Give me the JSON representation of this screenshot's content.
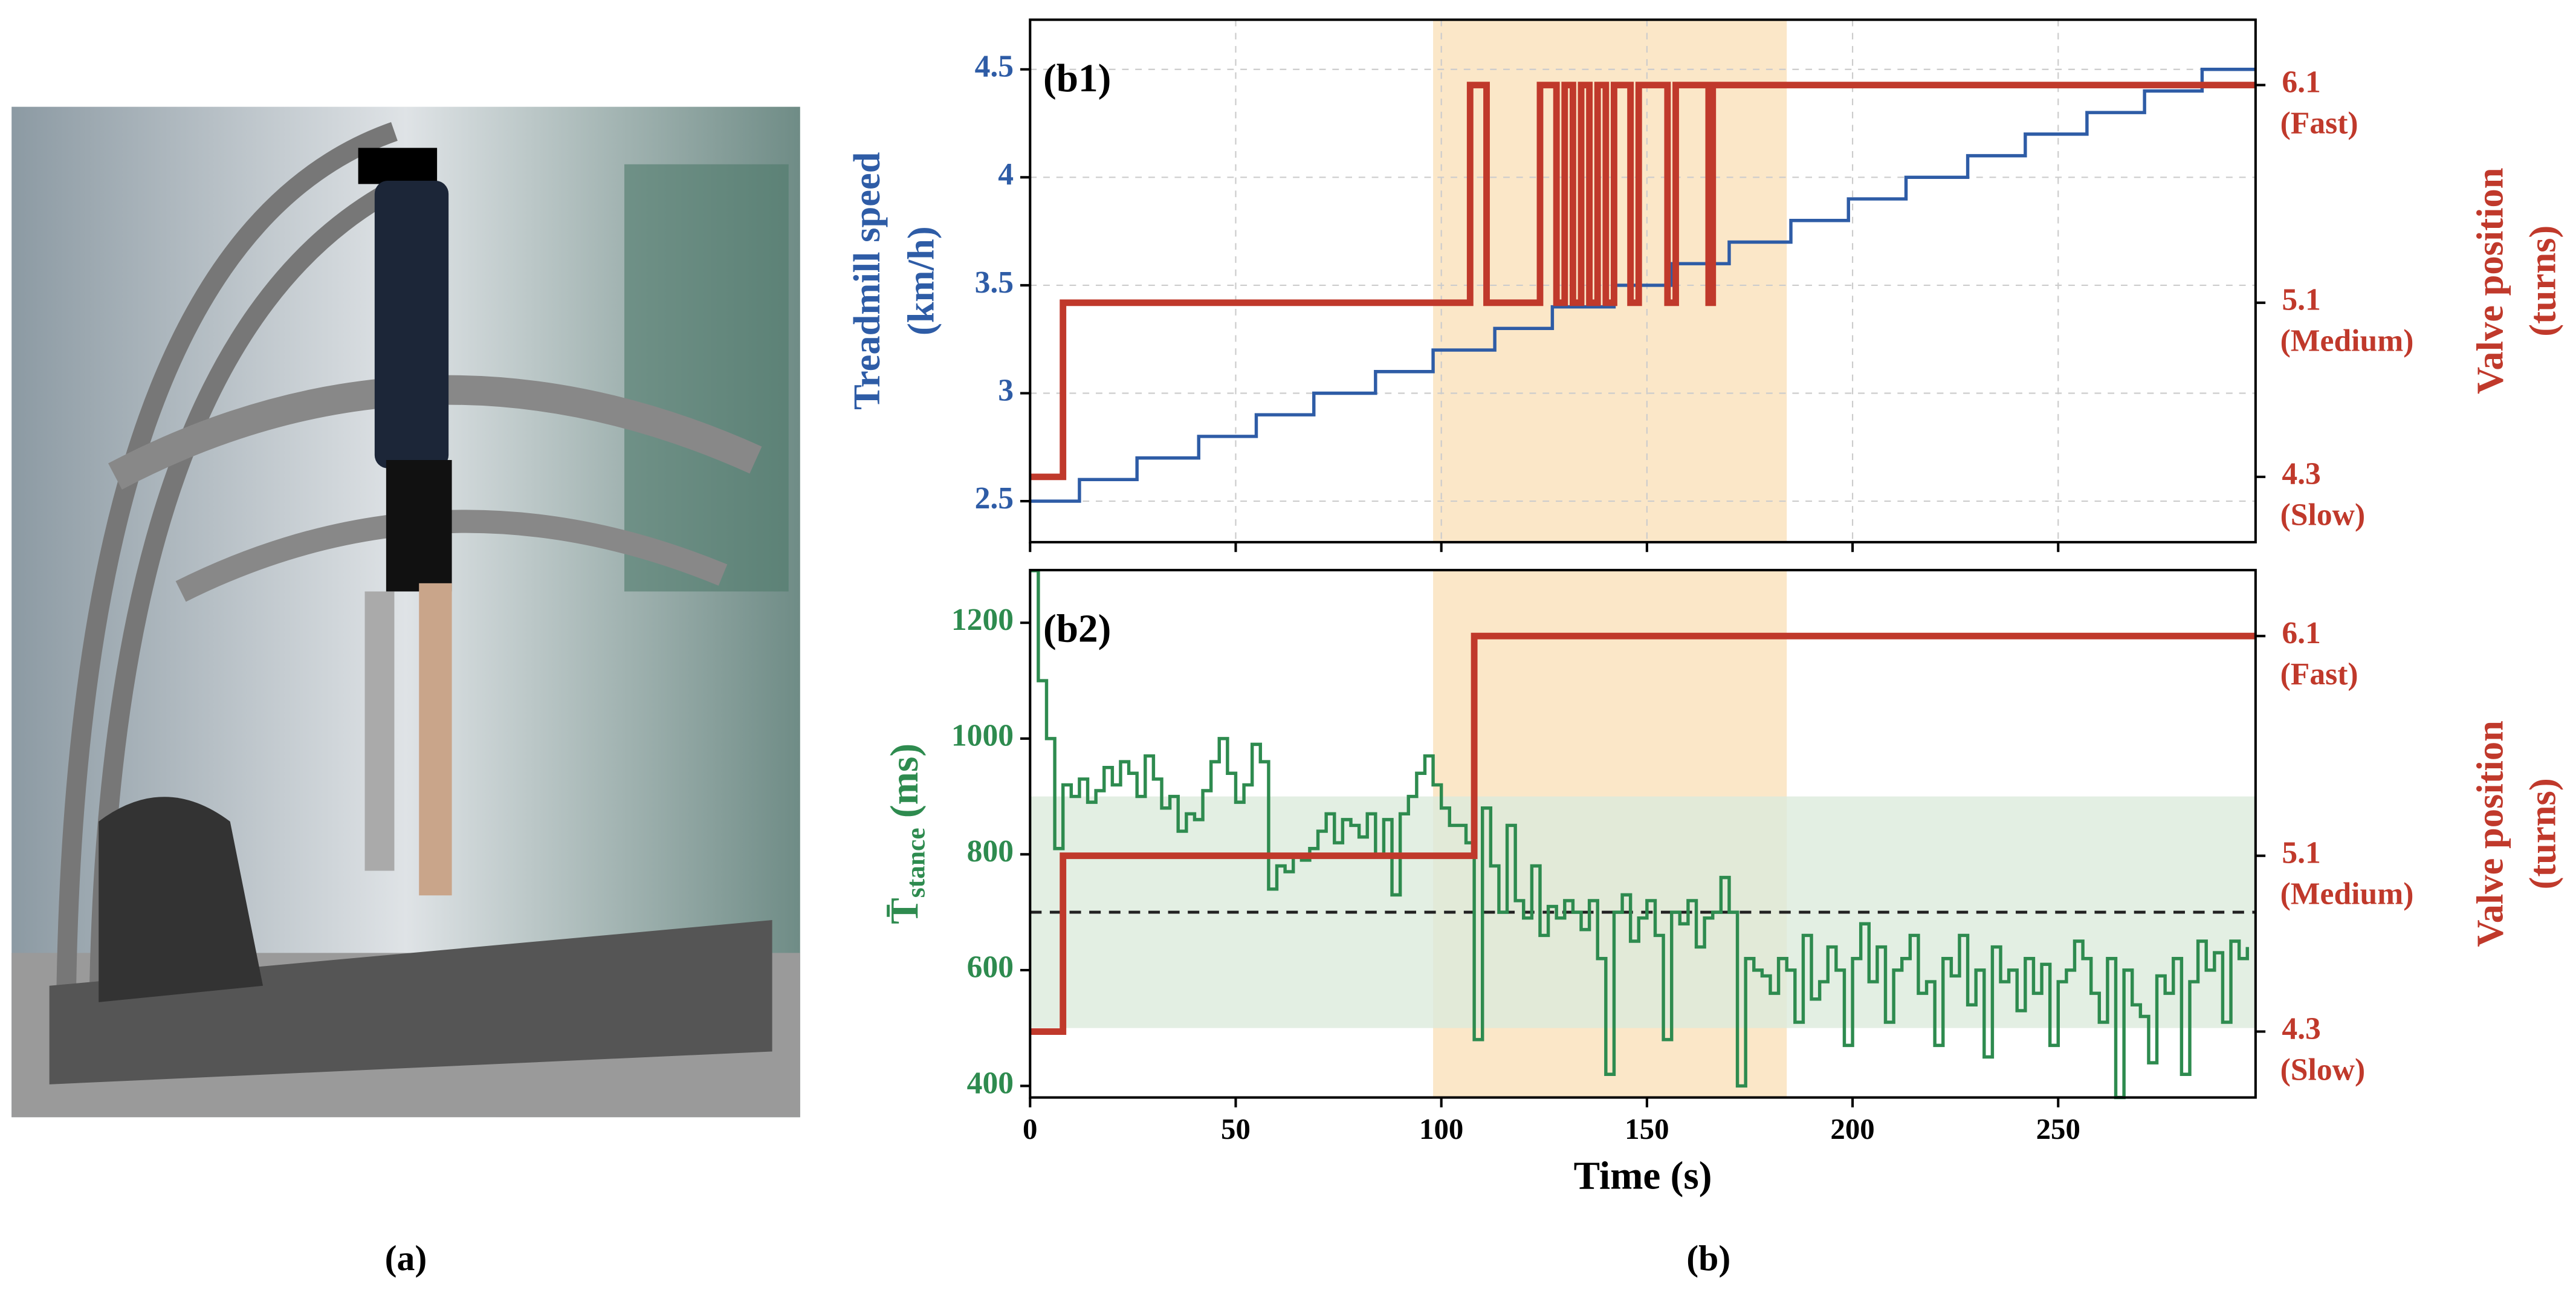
{
  "panel_a": {
    "caption": "(a)"
  },
  "panel_b": {
    "caption": "(b)"
  },
  "chart_data": [
    {
      "type": "line",
      "panel_label": "(b1)",
      "ylabel": [
        "Treadmill speed",
        "(km/h)"
      ],
      "y2label": [
        "Valve position",
        "(turns)"
      ],
      "xlim": [
        0,
        298
      ],
      "xticks": [
        0,
        50,
        100,
        150,
        200,
        250
      ],
      "show_xtick_labels": false,
      "ylim": [
        2.31,
        4.73
      ],
      "yticks": [
        2.5,
        3.0,
        3.5,
        4.0,
        4.5
      ],
      "ytick_color": "#2e5ca6",
      "y2lim": [
        4.0,
        6.4
      ],
      "y2ticks": [
        {
          "value": 4.3,
          "label": "4.3"
        },
        {
          "value": 5.1,
          "label": "5.1"
        },
        {
          "value": 6.1,
          "label": "6.1"
        }
      ],
      "y2tick_sublabels": [
        "(Slow)",
        "(Medium)",
        "(Fast)"
      ],
      "y2tick_color": "#c0392b",
      "grid": true,
      "highlight_x": [
        98,
        184
      ],
      "highlight_color": "#fbe7c8",
      "series": [
        {
          "name": "Treadmill speed",
          "color": "#2e5ca6",
          "step": true,
          "width": 2,
          "x": [
            0,
            12,
            26,
            41,
            55,
            69,
            84,
            98,
            113,
            127,
            142,
            156,
            170,
            185,
            199,
            213,
            228,
            242,
            257,
            271,
            285,
            298
          ],
          "values": [
            2.5,
            2.6,
            2.7,
            2.8,
            2.9,
            3.0,
            3.1,
            3.2,
            3.3,
            3.4,
            3.5,
            3.6,
            3.7,
            3.8,
            3.9,
            4.0,
            4.1,
            4.2,
            4.3,
            4.4,
            4.5,
            4.5
          ]
        },
        {
          "name": "Valve position",
          "axis": "y2",
          "color": "#c0392b",
          "step": true,
          "width": 4,
          "x": [
            0,
            8,
            107,
            111,
            124,
            128,
            130,
            132,
            134,
            136,
            138,
            140,
            142,
            146,
            148,
            155,
            157,
            165,
            166,
            172,
            298
          ],
          "values": [
            4.3,
            5.1,
            6.1,
            5.1,
            6.1,
            5.1,
            6.1,
            5.1,
            6.1,
            5.1,
            6.1,
            5.1,
            6.1,
            5.1,
            6.1,
            5.1,
            6.1,
            5.1,
            6.1,
            6.1,
            6.1
          ]
        }
      ]
    },
    {
      "type": "line",
      "panel_label": "(b2)",
      "ylabel": [
        "T̄",
        "stance",
        "(ms)"
      ],
      "y2label": [
        "Valve position",
        "(turns)"
      ],
      "xlabel": "Time (s)",
      "xlim": [
        0,
        298
      ],
      "xticks": [
        0,
        50,
        100,
        150,
        200,
        250
      ],
      "show_xtick_labels": true,
      "ylim": [
        380,
        1291
      ],
      "yticks": [
        400,
        600,
        800,
        1000,
        1200
      ],
      "ytick_color": "#2e8b4f",
      "y2lim": [
        4.0,
        6.4
      ],
      "y2ticks": [
        {
          "value": 4.3,
          "label": "4.3"
        },
        {
          "value": 5.1,
          "label": "5.1"
        },
        {
          "value": 6.1,
          "label": "6.1"
        }
      ],
      "y2tick_sublabels": [
        "(Slow)",
        "(Medium)",
        "(Fast)"
      ],
      "y2tick_color": "#c0392b",
      "grid": false,
      "highlight_x": [
        98,
        184
      ],
      "highlight_color": "#fbe7c8",
      "band": [
        500,
        900
      ],
      "band_color": "#dcebdc",
      "reference_line": 700,
      "series": [
        {
          "name": "Stance time",
          "color": "#2e8b4f",
          "step": true,
          "width": 2,
          "x": [
            0,
            2,
            4,
            6,
            8,
            10,
            12,
            14,
            16,
            18,
            20,
            22,
            24,
            26,
            28,
            30,
            32,
            34,
            36,
            38,
            40,
            42,
            44,
            46,
            48,
            50,
            52,
            54,
            56,
            58,
            60,
            62,
            64,
            66,
            68,
            70,
            72,
            74,
            76,
            78,
            80,
            82,
            84,
            86,
            88,
            90,
            92,
            94,
            96,
            98,
            100,
            102,
            104,
            106,
            108,
            110,
            112,
            114,
            116,
            118,
            120,
            122,
            124,
            126,
            128,
            130,
            132,
            134,
            136,
            138,
            140,
            142,
            144,
            146,
            148,
            150,
            152,
            154,
            156,
            158,
            160,
            162,
            164,
            166,
            168,
            170,
            172,
            174,
            176,
            178,
            180,
            182,
            184,
            186,
            188,
            190,
            192,
            194,
            196,
            198,
            200,
            202,
            204,
            206,
            208,
            210,
            212,
            214,
            216,
            218,
            220,
            222,
            224,
            226,
            228,
            230,
            232,
            234,
            236,
            238,
            240,
            242,
            244,
            246,
            248,
            250,
            252,
            254,
            256,
            258,
            260,
            262,
            264,
            266,
            268,
            270,
            272,
            274,
            276,
            278,
            280,
            282,
            284,
            286,
            288,
            290,
            292,
            294,
            296
          ],
          "values": [
            1290,
            1100,
            1000,
            810,
            920,
            900,
            930,
            890,
            910,
            950,
            920,
            960,
            940,
            900,
            970,
            930,
            880,
            900,
            840,
            870,
            860,
            910,
            960,
            1000,
            940,
            890,
            920,
            990,
            960,
            740,
            780,
            770,
            800,
            790,
            810,
            840,
            870,
            820,
            860,
            850,
            830,
            870,
            800,
            860,
            730,
            870,
            900,
            940,
            970,
            920,
            880,
            850,
            850,
            820,
            480,
            880,
            780,
            700,
            850,
            720,
            690,
            780,
            660,
            710,
            690,
            720,
            700,
            670,
            720,
            620,
            420,
            700,
            730,
            650,
            690,
            720,
            660,
            480,
            700,
            680,
            720,
            640,
            690,
            700,
            760,
            700,
            400,
            620,
            600,
            590,
            560,
            620,
            600,
            510,
            660,
            550,
            580,
            640,
            600,
            470,
            620,
            680,
            580,
            640,
            510,
            600,
            620,
            660,
            560,
            580,
            470,
            620,
            590,
            660,
            540,
            600,
            450,
            640,
            580,
            600,
            530,
            620,
            560,
            610,
            470,
            580,
            600,
            650,
            620,
            560,
            510,
            620,
            380,
            600,
            540,
            520,
            440,
            590,
            560,
            620,
            420,
            580,
            650,
            600,
            630,
            510,
            650,
            620,
            640
          ]
        },
        {
          "name": "Valve position",
          "axis": "y2",
          "color": "#c0392b",
          "step": true,
          "width": 4,
          "x": [
            0,
            8,
            108,
            298
          ],
          "values": [
            4.3,
            5.1,
            6.1,
            6.1
          ]
        }
      ]
    }
  ]
}
